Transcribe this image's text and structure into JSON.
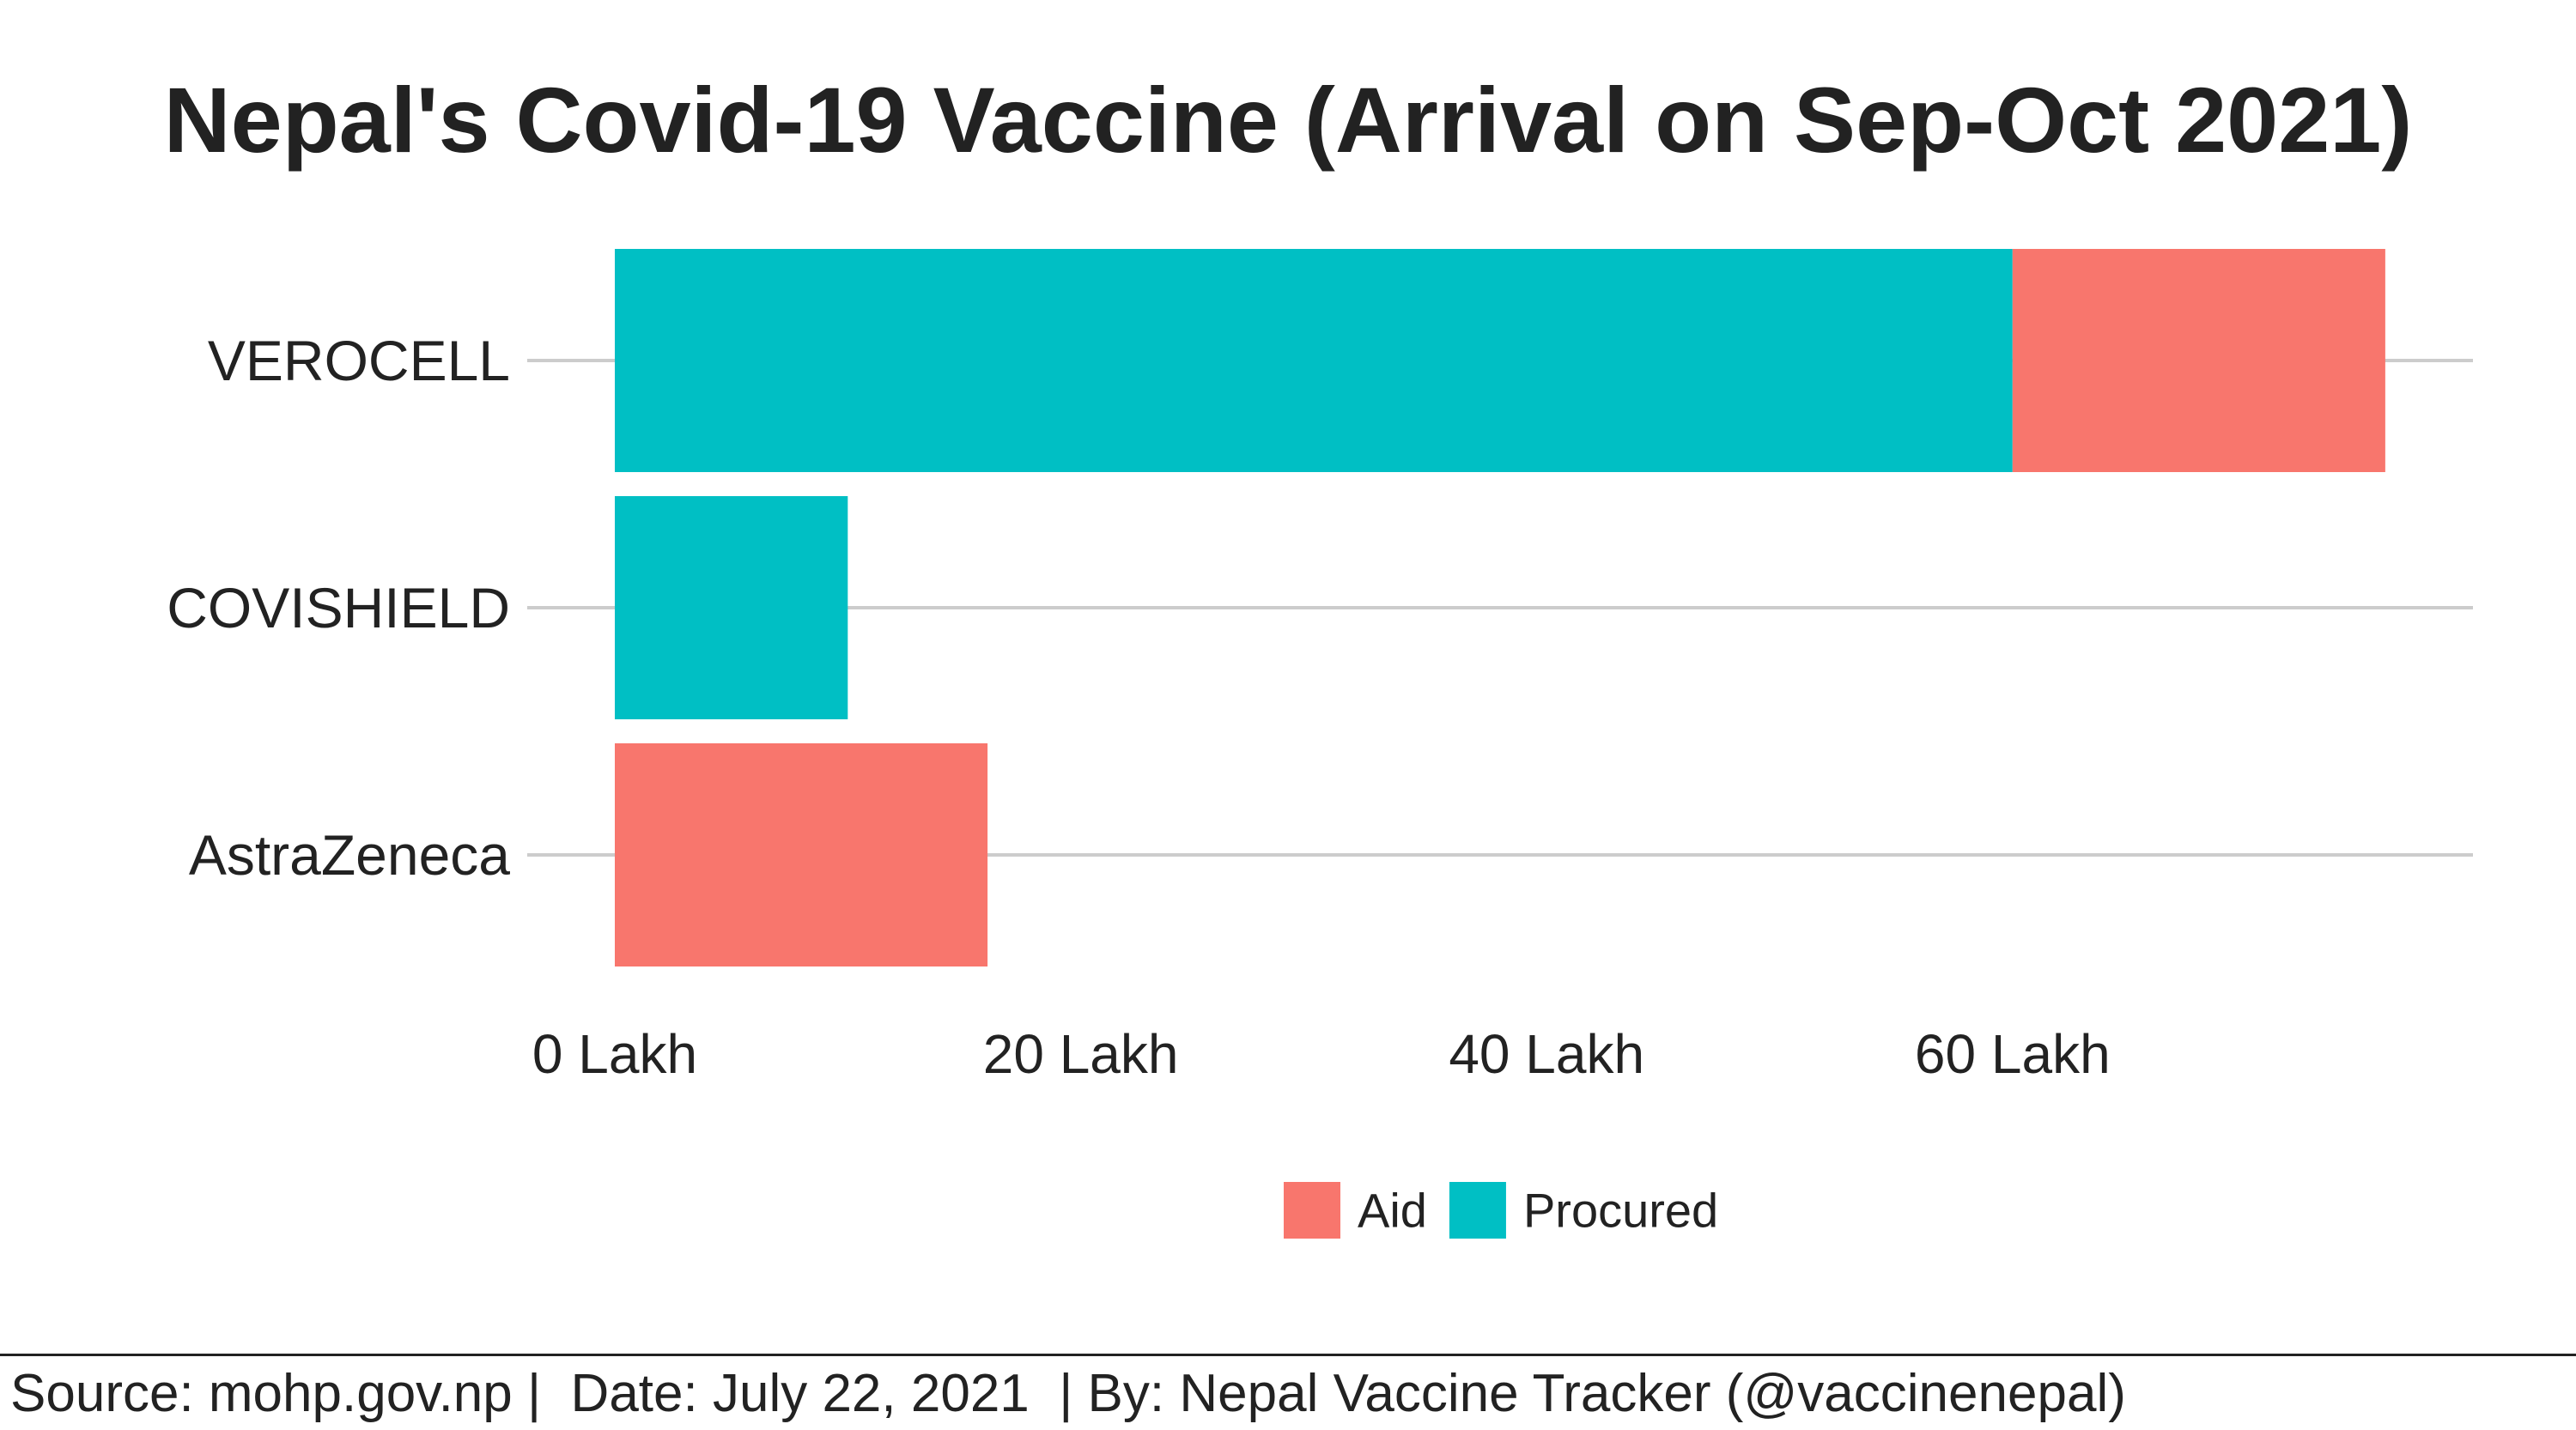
{
  "chart_data": {
    "type": "bar",
    "orientation": "horizontal",
    "stacked": true,
    "title": "Nepal's Covid-19 Vaccine (Arrival on Sep-Oct 2021)",
    "categories": [
      "VEROCELL",
      "COVISHIELD",
      "AstraZeneca"
    ],
    "series": [
      {
        "name": "Procured",
        "color": "#00BFC4",
        "values": [
          60,
          10,
          0
        ]
      },
      {
        "name": "Aid",
        "color": "#F8766D",
        "values": [
          16,
          0,
          16
        ]
      }
    ],
    "x_ticks": [
      0,
      20,
      40,
      60
    ],
    "x_tick_labels": [
      "0 Lakh",
      "20 Lakh",
      "40 Lakh",
      "60 Lakh"
    ],
    "xlim": [
      0,
      80
    ],
    "grid": "horizontal major lines at categories",
    "legend": {
      "position": "bottom",
      "items": [
        {
          "label": "Aid",
          "color": "#F8766D"
        },
        {
          "label": "Procured",
          "color": "#00BFC4"
        }
      ]
    }
  },
  "footer": {
    "text": "Source: mohp.gov.np |  Date: July 22, 2021  | By: Nepal Vaccine Tracker (@vaccinenepal)"
  }
}
